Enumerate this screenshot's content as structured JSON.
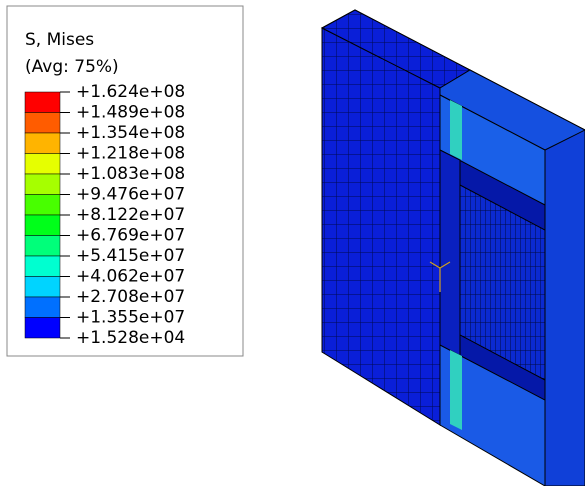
{
  "legend": {
    "title": "S, Mises",
    "subtitle": "(Avg: 75%)",
    "labels": [
      "+1.624e+08",
      "+1.489e+08",
      "+1.354e+08",
      "+1.218e+08",
      "+1.083e+08",
      "+9.476e+07",
      "+8.122e+07",
      "+6.769e+07",
      "+5.415e+07",
      "+4.062e+07",
      "+2.708e+07",
      "+1.355e+07",
      "+1.528e+04"
    ],
    "colors": [
      "#ff0000",
      "#ff5c00",
      "#ffb400",
      "#e6ff00",
      "#a6ff00",
      "#48ff00",
      "#00ff1a",
      "#00ff7a",
      "#00ffd0",
      "#00d4ff",
      "#0070ff",
      "#0000ff"
    ]
  }
}
